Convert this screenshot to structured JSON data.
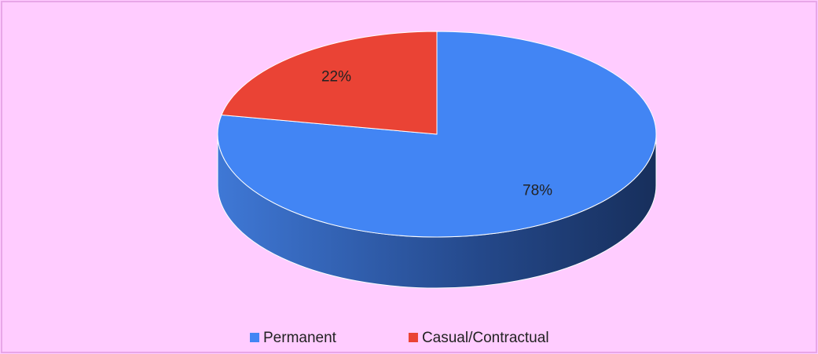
{
  "chart_data": {
    "type": "pie",
    "three_d": true,
    "categories": [
      "Permanent",
      "Casual/Contractual"
    ],
    "values": [
      78,
      22
    ],
    "value_labels": [
      "78%",
      "22%"
    ],
    "colors": [
      "#4285f4",
      "#ea4335"
    ],
    "legend": "bottom"
  }
}
